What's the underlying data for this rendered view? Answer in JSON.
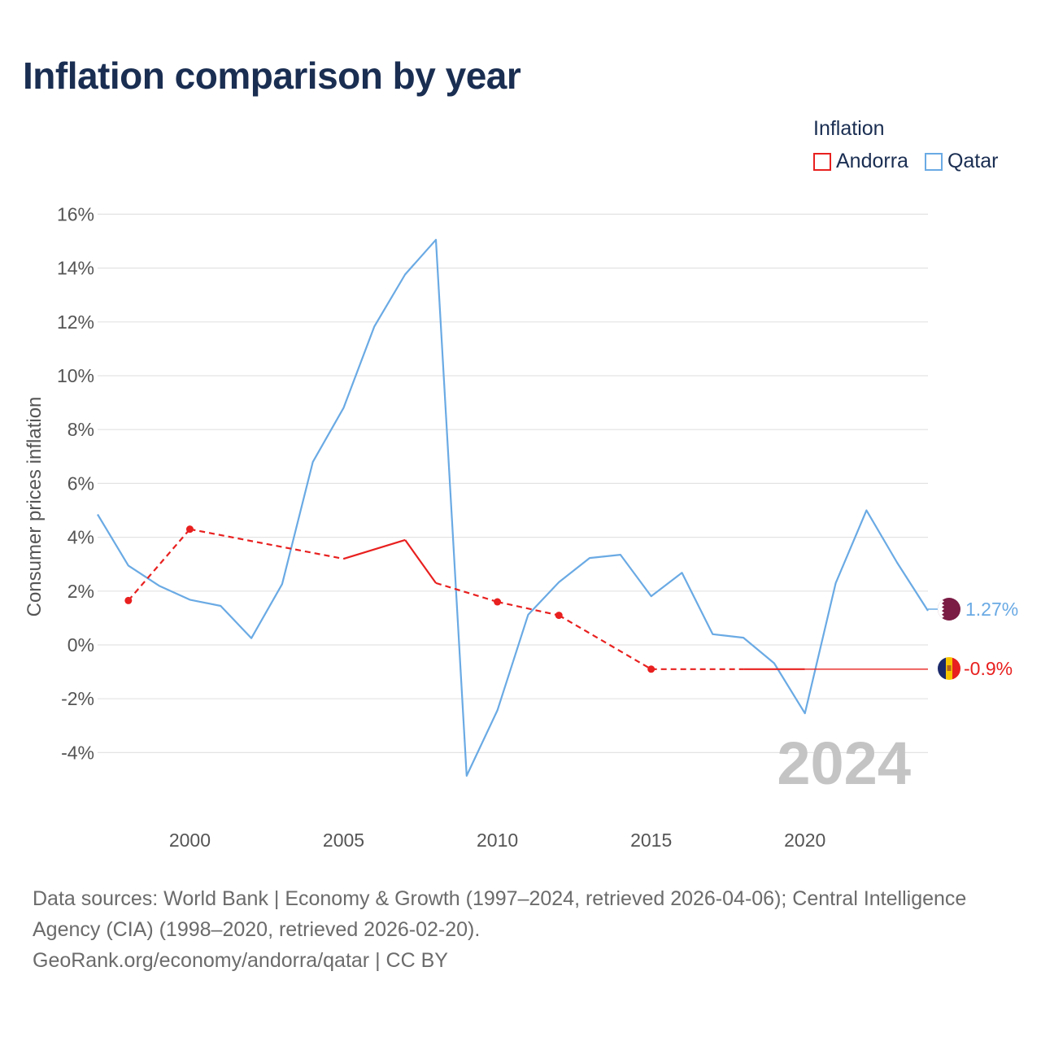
{
  "title": "Inflation comparison by year",
  "legend": {
    "title": "Inflation",
    "items": [
      {
        "label": "Andorra",
        "color": "#e8201f"
      },
      {
        "label": "Qatar",
        "color": "#6aaae4"
      }
    ]
  },
  "year_watermark": "2024",
  "end_labels": {
    "qatar": "1.27%",
    "andorra": "-0.9%"
  },
  "sources": {
    "line1": "Data sources: World Bank | Economy & Growth (1997–2024, retrieved 2026-04-06); Central Intelligence",
    "line2": "Agency (CIA) (1998–2020, retrieved 2026-02-20).",
    "line3": "GeoRank.org/economy/andorra/qatar | CC BY"
  },
  "chart_data": {
    "type": "line",
    "title": "Inflation comparison by year",
    "xlabel": "",
    "ylabel": "Consumer prices inflation",
    "xlim": [
      1997,
      2024
    ],
    "ylim": [
      -6,
      16
    ],
    "yticks": [
      16,
      14,
      12,
      10,
      8,
      6,
      4,
      2,
      0,
      -2,
      -4
    ],
    "ytick_labels": [
      "16%",
      "14%",
      "12%",
      "10%",
      "8%",
      "6%",
      "4%",
      "2%",
      "0%",
      "-2%",
      "-4%"
    ],
    "xticks": [
      2000,
      2005,
      2010,
      2015,
      2020
    ],
    "xtick_labels": [
      "2000",
      "2005",
      "2010",
      "2015",
      "2020"
    ],
    "series": [
      {
        "name": "Qatar",
        "color": "#6aaae4",
        "points": [
          [
            1997,
            4.85
          ],
          [
            1998,
            2.95
          ],
          [
            1999,
            2.2
          ],
          [
            2000,
            1.68
          ],
          [
            2001,
            1.45
          ],
          [
            2002,
            0.25
          ],
          [
            2003,
            2.26
          ],
          [
            2004,
            6.8
          ],
          [
            2005,
            8.81
          ],
          [
            2006,
            11.83
          ],
          [
            2007,
            13.76
          ],
          [
            2008,
            15.05
          ],
          [
            2009,
            -4.86
          ],
          [
            2010,
            -2.43
          ],
          [
            2011,
            1.12
          ],
          [
            2012,
            2.33
          ],
          [
            2013,
            3.23
          ],
          [
            2014,
            3.35
          ],
          [
            2015,
            1.81
          ],
          [
            2016,
            2.68
          ],
          [
            2017,
            0.4
          ],
          [
            2018,
            0.27
          ],
          [
            2019,
            -0.68
          ],
          [
            2020,
            -2.54
          ],
          [
            2021,
            2.3
          ],
          [
            2022,
            5.0
          ],
          [
            2023,
            3.05
          ],
          [
            2024,
            1.27
          ]
        ]
      },
      {
        "name": "Andorra",
        "color": "#e8201f",
        "observed": [
          [
            1998,
            1.65
          ],
          [
            2000,
            4.3
          ],
          [
            2010,
            1.6
          ],
          [
            2012,
            1.1
          ],
          [
            2015,
            -0.9
          ]
        ],
        "points": [
          [
            1998,
            1.65
          ],
          [
            2000,
            4.3
          ],
          [
            2005,
            3.2
          ],
          [
            2007,
            3.9
          ],
          [
            2008,
            2.3
          ],
          [
            2010,
            1.6
          ],
          [
            2012,
            1.1
          ],
          [
            2015,
            -0.9
          ],
          [
            2018,
            -0.9
          ],
          [
            2020,
            -0.9
          ],
          [
            2024,
            -0.9
          ]
        ]
      }
    ]
  }
}
